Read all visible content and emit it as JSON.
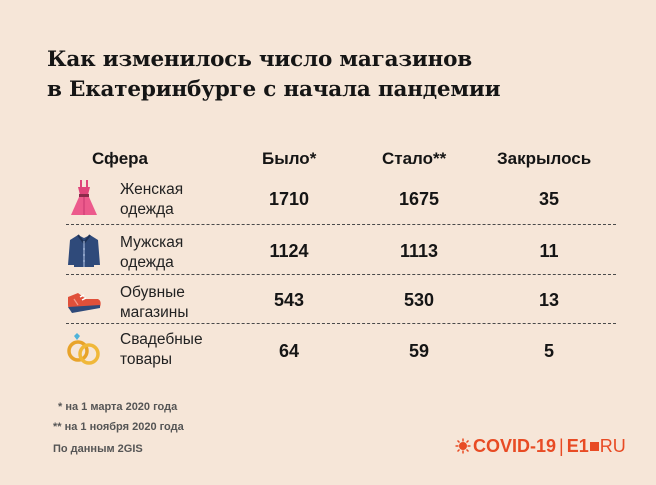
{
  "title": {
    "line1": "Как изменилось число магазинов",
    "line2": "в Екатеринбурге с начала пандемии"
  },
  "table": {
    "headers": {
      "sphere": "Сфера",
      "before": "Было*",
      "after": "Стало**",
      "closed": "Закрылось"
    },
    "rows": [
      {
        "icon": "dress-icon",
        "name1": "Женская",
        "name2": "одежда",
        "before": "1710",
        "after": "1675",
        "closed": "35"
      },
      {
        "icon": "jacket-icon",
        "name1": "Мужская",
        "name2": "одежда",
        "before": "1124",
        "after": "1113",
        "closed": "11"
      },
      {
        "icon": "sneaker-icon",
        "name1": "Обувные",
        "name2": "магазины",
        "before": "543",
        "after": "530",
        "closed": "13"
      },
      {
        "icon": "wedding-rings-icon",
        "name1": "Свадебные",
        "name2": "товары",
        "before": "64",
        "after": "59",
        "closed": "5"
      }
    ]
  },
  "notes": {
    "note1": "* на 1 марта 2020 года",
    "note2": "** на 1 ноября 2020 года",
    "source": "По данным 2GIS"
  },
  "logo": {
    "covid": "COVID-19",
    "brand_e": "E1",
    "brand_ru": "RU"
  },
  "colors": {
    "background": "#f6e6d8",
    "accent": "#e84b24",
    "dress": "#e0457b",
    "jacket": "#2f4a7a",
    "sneaker": "#e0503a",
    "ring": "#e8a32a"
  }
}
